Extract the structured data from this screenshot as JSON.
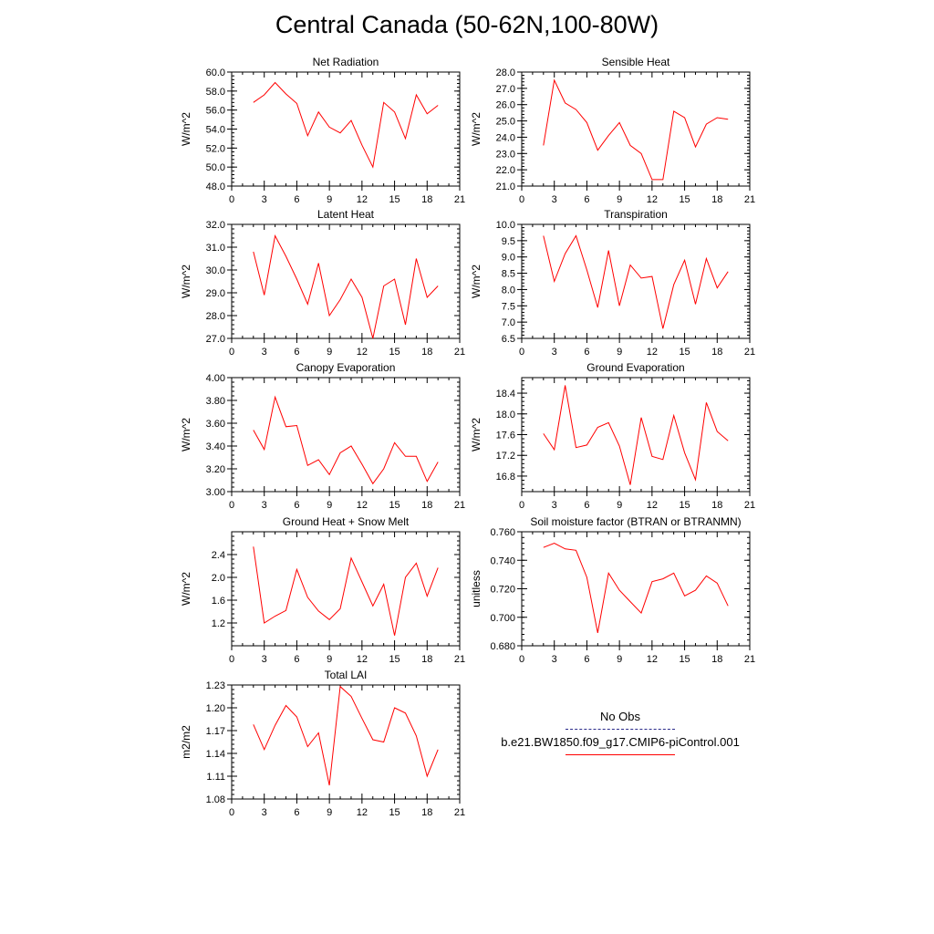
{
  "title": "Central Canada (50-62N,100-80W)",
  "legend": {
    "entries": [
      {
        "label": "No Obs",
        "color": "#2a2a8a",
        "style": "dashed"
      },
      {
        "label": "b.e21.BW1850.f09_g17.CMIP6-piControl.001",
        "color": "#ff0000",
        "style": "solid"
      }
    ]
  },
  "chart_data": [
    {
      "type": "line",
      "title": "Net Radiation",
      "ylabel": "W/m^2",
      "xlim": [
        0,
        21
      ],
      "ylim": [
        48,
        60
      ],
      "xticks": [
        0,
        3,
        6,
        9,
        12,
        15,
        18,
        21
      ],
      "yticks": [
        48,
        50,
        52,
        54,
        56,
        58,
        60
      ],
      "yticklabels": [
        "48.0",
        "50.0",
        "52.0",
        "54.0",
        "56.0",
        "58.0",
        "60.0"
      ],
      "x": [
        2,
        3,
        4,
        5,
        6,
        7,
        8,
        9,
        10,
        11,
        12,
        13,
        14,
        15,
        16,
        17,
        18,
        19
      ],
      "series": [
        {
          "color": "#ff0000",
          "values": [
            56.8,
            57.6,
            58.9,
            57.7,
            56.7,
            53.3,
            55.8,
            54.2,
            53.6,
            54.9,
            52.3,
            50.0,
            56.8,
            55.8,
            53.0,
            57.6,
            55.6,
            56.5
          ]
        }
      ]
    },
    {
      "type": "line",
      "title": "Sensible Heat",
      "ylabel": "W/m^2",
      "xlim": [
        0,
        21
      ],
      "ylim": [
        21,
        28
      ],
      "xticks": [
        0,
        3,
        6,
        9,
        12,
        15,
        18,
        21
      ],
      "yticks": [
        21,
        22,
        23,
        24,
        25,
        26,
        27,
        28
      ],
      "yticklabels": [
        "21.0",
        "22.0",
        "23.0",
        "24.0",
        "25.0",
        "26.0",
        "27.0",
        "28.0"
      ],
      "x": [
        2,
        3,
        4,
        5,
        6,
        7,
        8,
        9,
        10,
        11,
        12,
        13,
        14,
        15,
        16,
        17,
        18,
        19
      ],
      "series": [
        {
          "color": "#ff0000",
          "values": [
            23.5,
            27.5,
            26.1,
            25.7,
            24.9,
            23.2,
            24.1,
            24.9,
            23.5,
            23.0,
            21.4,
            21.4,
            25.6,
            25.2,
            23.4,
            24.8,
            25.2,
            25.1
          ]
        }
      ]
    },
    {
      "type": "line",
      "title": "Latent Heat",
      "ylabel": "W/m^2",
      "xlim": [
        0,
        21
      ],
      "ylim": [
        27,
        32
      ],
      "xticks": [
        0,
        3,
        6,
        9,
        12,
        15,
        18,
        21
      ],
      "yticks": [
        27,
        28,
        29,
        30,
        31,
        32
      ],
      "yticklabels": [
        "27.0",
        "28.0",
        "29.0",
        "30.0",
        "31.0",
        "32.0"
      ],
      "x": [
        2,
        3,
        4,
        5,
        6,
        7,
        8,
        9,
        10,
        11,
        12,
        13,
        14,
        15,
        16,
        17,
        18,
        19
      ],
      "series": [
        {
          "color": "#ff0000",
          "values": [
            30.8,
            28.9,
            31.5,
            30.6,
            29.6,
            28.5,
            30.3,
            28.0,
            28.7,
            29.6,
            28.8,
            27.0,
            29.3,
            29.6,
            27.6,
            30.5,
            28.8,
            29.3
          ]
        }
      ]
    },
    {
      "type": "line",
      "title": "Transpiration",
      "ylabel": "W/m^2",
      "xlim": [
        0,
        21
      ],
      "ylim": [
        6.5,
        10
      ],
      "xticks": [
        0,
        3,
        6,
        9,
        12,
        15,
        18,
        21
      ],
      "yticks": [
        6.5,
        7,
        7.5,
        8,
        8.5,
        9,
        9.5,
        10
      ],
      "yticklabels": [
        "6.5",
        "7.0",
        "7.5",
        "8.0",
        "8.5",
        "9.0",
        "9.5",
        "10.0"
      ],
      "x": [
        2,
        3,
        4,
        5,
        6,
        7,
        8,
        9,
        10,
        11,
        12,
        13,
        14,
        15,
        16,
        17,
        18,
        19
      ],
      "series": [
        {
          "color": "#ff0000",
          "values": [
            9.65,
            8.25,
            9.1,
            9.65,
            8.6,
            7.45,
            9.2,
            7.5,
            8.75,
            8.35,
            8.4,
            6.8,
            8.15,
            8.9,
            7.55,
            8.95,
            8.05,
            8.55
          ]
        }
      ]
    },
    {
      "type": "line",
      "title": "Canopy Evaporation",
      "ylabel": "W/m^2",
      "xlim": [
        0,
        21
      ],
      "ylim": [
        3.0,
        4.0
      ],
      "xticks": [
        0,
        3,
        6,
        9,
        12,
        15,
        18,
        21
      ],
      "yticks": [
        3.0,
        3.2,
        3.4,
        3.6,
        3.8,
        4.0
      ],
      "yticklabels": [
        "3.00",
        "3.20",
        "3.40",
        "3.60",
        "3.80",
        "4.00"
      ],
      "x": [
        2,
        3,
        4,
        5,
        6,
        7,
        8,
        9,
        10,
        11,
        12,
        13,
        14,
        15,
        16,
        17,
        18,
        19
      ],
      "series": [
        {
          "color": "#ff0000",
          "values": [
            3.54,
            3.37,
            3.83,
            3.57,
            3.58,
            3.23,
            3.28,
            3.15,
            3.34,
            3.4,
            3.24,
            3.07,
            3.2,
            3.43,
            3.31,
            3.31,
            3.09,
            3.26
          ]
        }
      ]
    },
    {
      "type": "line",
      "title": "Ground Evaporation",
      "ylabel": "W/m^2",
      "xlim": [
        0,
        21
      ],
      "ylim": [
        16.5,
        18.7
      ],
      "xticks": [
        0,
        3,
        6,
        9,
        12,
        15,
        18,
        21
      ],
      "yticks": [
        16.8,
        17.2,
        17.6,
        18.0,
        18.4
      ],
      "yticklabels": [
        "16.8",
        "17.2",
        "17.6",
        "18.0",
        "18.4"
      ],
      "x": [
        2,
        3,
        4,
        5,
        6,
        7,
        8,
        9,
        10,
        11,
        12,
        13,
        14,
        15,
        16,
        17,
        18,
        19
      ],
      "series": [
        {
          "color": "#ff0000",
          "values": [
            17.62,
            17.31,
            18.55,
            17.35,
            17.4,
            17.74,
            17.83,
            17.38,
            16.63,
            17.93,
            17.18,
            17.12,
            17.97,
            17.25,
            16.73,
            18.22,
            17.66,
            17.48
          ]
        }
      ]
    },
    {
      "type": "line",
      "title": "Ground Heat + Snow Melt",
      "ylabel": "W/m^2",
      "xlim": [
        0,
        21
      ],
      "ylim": [
        0.8,
        2.8
      ],
      "xticks": [
        0,
        3,
        6,
        9,
        12,
        15,
        18,
        21
      ],
      "yticks": [
        1.2,
        1.6,
        2.0,
        2.4
      ],
      "yticklabels": [
        "1.2",
        "1.6",
        "2.0",
        "2.4"
      ],
      "x": [
        2,
        3,
        4,
        5,
        6,
        7,
        8,
        9,
        10,
        11,
        12,
        13,
        14,
        15,
        16,
        17,
        18,
        19
      ],
      "series": [
        {
          "color": "#ff0000",
          "values": [
            2.54,
            1.2,
            1.32,
            1.42,
            2.14,
            1.65,
            1.41,
            1.26,
            1.45,
            2.34,
            1.92,
            1.5,
            1.88,
            0.98,
            2.0,
            2.25,
            1.67,
            2.17
          ]
        }
      ]
    },
    {
      "type": "line",
      "title": "Soil moisture factor (BTRAN or BTRANMN)",
      "ylabel": "unitless",
      "xlim": [
        0,
        21
      ],
      "ylim": [
        0.68,
        0.76
      ],
      "xticks": [
        0,
        3,
        6,
        9,
        12,
        15,
        18,
        21
      ],
      "yticks": [
        0.68,
        0.7,
        0.72,
        0.74,
        0.76
      ],
      "yticklabels": [
        "0.680",
        "0.700",
        "0.720",
        "0.740",
        "0.760"
      ],
      "x": [
        2,
        3,
        4,
        5,
        6,
        7,
        8,
        9,
        10,
        11,
        12,
        13,
        14,
        15,
        16,
        17,
        18,
        19
      ],
      "series": [
        {
          "color": "#ff0000",
          "values": [
            0.749,
            0.752,
            0.748,
            0.747,
            0.728,
            0.689,
            0.731,
            0.719,
            0.711,
            0.703,
            0.725,
            0.727,
            0.731,
            0.715,
            0.719,
            0.729,
            0.724,
            0.708
          ]
        }
      ]
    },
    {
      "type": "line",
      "title": "Total LAI",
      "ylabel": "m2/m2",
      "xlim": [
        0,
        21
      ],
      "ylim": [
        1.08,
        1.23
      ],
      "xticks": [
        0,
        3,
        6,
        9,
        12,
        15,
        18,
        21
      ],
      "yticks": [
        1.08,
        1.11,
        1.14,
        1.17,
        1.2,
        1.23
      ],
      "yticklabels": [
        "1.08",
        "1.11",
        "1.14",
        "1.17",
        "1.20",
        "1.23"
      ],
      "x": [
        2,
        3,
        4,
        5,
        6,
        7,
        8,
        9,
        10,
        11,
        12,
        13,
        14,
        15,
        16,
        17,
        18,
        19
      ],
      "series": [
        {
          "color": "#ff0000",
          "values": [
            1.178,
            1.145,
            1.177,
            1.203,
            1.188,
            1.149,
            1.167,
            1.098,
            1.228,
            1.215,
            1.186,
            1.158,
            1.155,
            1.2,
            1.193,
            1.163,
            1.11,
            1.145
          ]
        }
      ]
    }
  ]
}
